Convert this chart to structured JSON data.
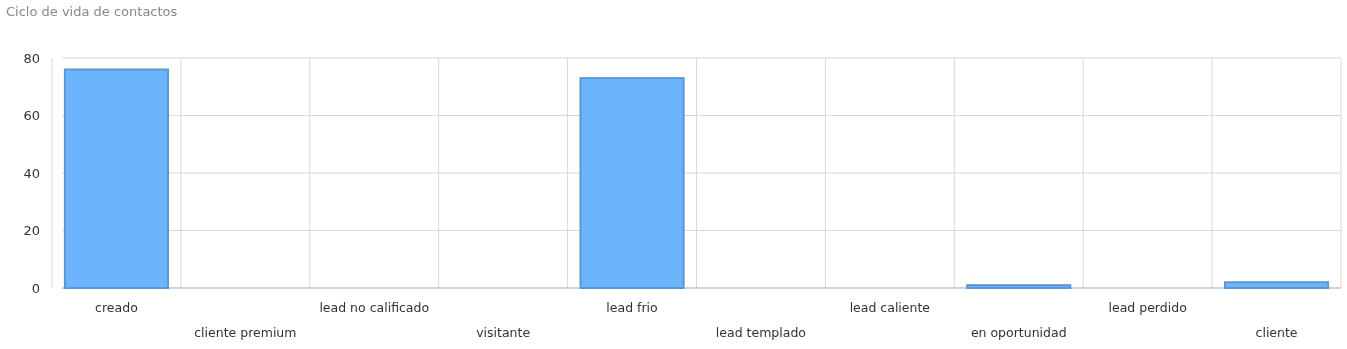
{
  "chart_data": {
    "type": "bar",
    "title": "Ciclo de vida de contactos",
    "categories": [
      "creado",
      "cliente premium",
      "lead no calificado",
      "visitante",
      "lead frio",
      "lead templado",
      "lead caliente",
      "en oportunidad",
      "lead perdido",
      "cliente"
    ],
    "values": [
      76,
      0,
      0,
      0,
      73,
      0,
      0,
      1,
      0,
      2
    ],
    "color": "#6cb4fc",
    "ylim": [
      0,
      80
    ],
    "yticks": [
      0,
      20,
      40,
      60,
      80
    ],
    "grid": true
  }
}
